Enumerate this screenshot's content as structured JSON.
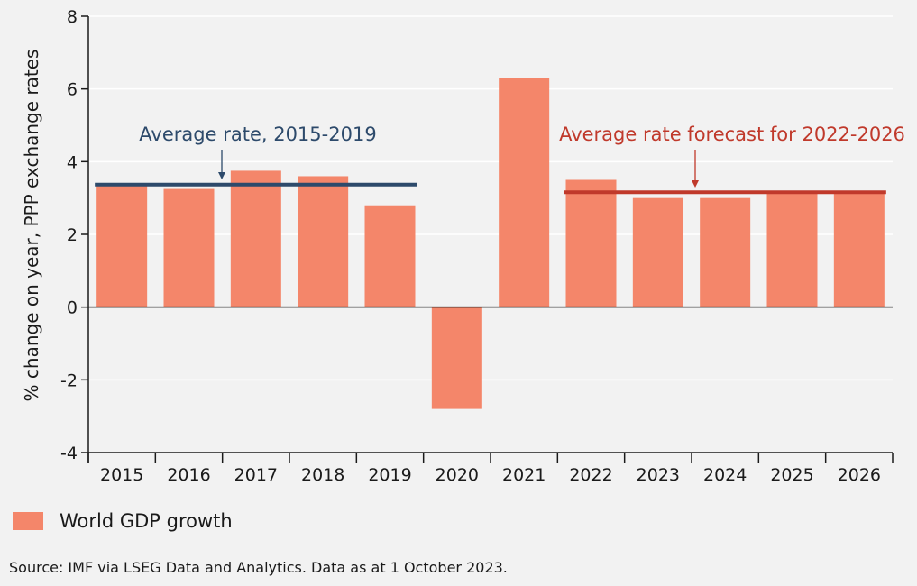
{
  "chart_data": {
    "type": "bar",
    "categories": [
      "2015",
      "2016",
      "2017",
      "2018",
      "2019",
      "2020",
      "2021",
      "2022",
      "2023",
      "2024",
      "2025",
      "2026"
    ],
    "series": [
      {
        "name": "World GDP growth",
        "values": [
          3.4,
          3.25,
          3.75,
          3.6,
          2.8,
          -2.8,
          6.3,
          3.5,
          3.0,
          3.0,
          3.15,
          3.15
        ]
      }
    ],
    "ylabel": "% change on year, PPP exchange rates",
    "xlabel": "",
    "ylim": [
      -4,
      8
    ],
    "yticks": [
      8,
      6,
      4,
      2,
      0,
      -2,
      -4
    ],
    "grid": true,
    "reference_lines": [
      {
        "label": "Average rate, 2015-2019",
        "value": 3.37,
        "from": "2015",
        "to": "2019",
        "color": "#2d4a6b"
      },
      {
        "label": "Average rate forecast for 2022-2026",
        "value": 3.16,
        "from": "2022",
        "to": "2026",
        "color": "#c0392b"
      }
    ],
    "legend": "bottom-left"
  },
  "colors": {
    "bar": "#f4866a",
    "axis": "#1a1a1a",
    "grid": "#ffffff"
  },
  "source": "Source: IMF via LSEG Data and Analytics. Data as at 1 October 2023."
}
